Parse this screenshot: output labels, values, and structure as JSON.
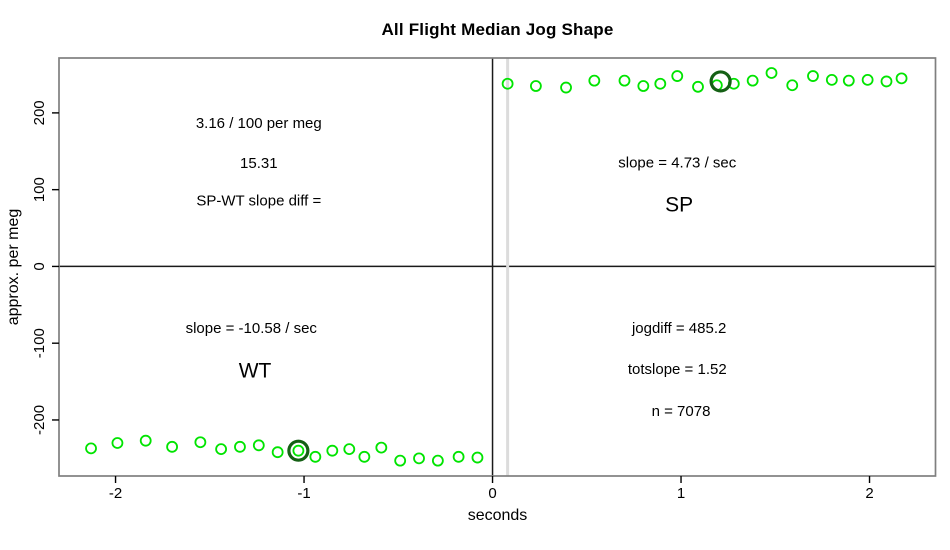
{
  "chart_data": {
    "type": "scatter",
    "title": "All Flight Median Jog Shape",
    "xlabel": "seconds",
    "ylabel": "approx. per meg",
    "x_range": [
      -2.3,
      2.35
    ],
    "y_range": [
      -273,
      271.5
    ],
    "x_ticks": [
      -2,
      -1,
      0,
      1,
      2
    ],
    "y_ticks": [
      -200,
      -100,
      0,
      100,
      200
    ],
    "grid": false,
    "legend": "none",
    "colors": {
      "point": "#00e400",
      "highlight_ring": "#156015",
      "plot_border": "#7f7f7f",
      "reference_line": "#1a1a1a",
      "marker_line": "#dcdcdc",
      "axis_text": "#000000",
      "background": "#ffffff"
    },
    "series": [
      {
        "name": "WT",
        "points": [
          [
            -2.13,
            -237
          ],
          [
            -1.99,
            -230
          ],
          [
            -1.84,
            -227
          ],
          [
            -1.7,
            -235
          ],
          [
            -1.55,
            -229
          ],
          [
            -1.44,
            -238
          ],
          [
            -1.34,
            -235
          ],
          [
            -1.24,
            -233
          ],
          [
            -1.14,
            -242
          ],
          [
            -1.03,
            -240
          ],
          [
            -0.94,
            -248
          ],
          [
            -0.85,
            -240
          ],
          [
            -0.76,
            -238
          ],
          [
            -0.68,
            -248
          ],
          [
            -0.59,
            -236
          ],
          [
            -0.49,
            -253
          ],
          [
            -0.39,
            -250
          ],
          [
            -0.29,
            -253
          ],
          [
            -0.18,
            -248
          ],
          [
            -0.08,
            -249
          ]
        ]
      },
      {
        "name": "SP",
        "points": [
          [
            0.08,
            238
          ],
          [
            0.23,
            235
          ],
          [
            0.39,
            233
          ],
          [
            0.54,
            242
          ],
          [
            0.7,
            242
          ],
          [
            0.8,
            235
          ],
          [
            0.89,
            238
          ],
          [
            0.98,
            248
          ],
          [
            1.09,
            234
          ],
          [
            1.19,
            236
          ],
          [
            1.28,
            238
          ],
          [
            1.38,
            242
          ],
          [
            1.48,
            252
          ],
          [
            1.59,
            236
          ],
          [
            1.7,
            248
          ],
          [
            1.8,
            243
          ],
          [
            1.89,
            242
          ],
          [
            1.99,
            243
          ],
          [
            2.09,
            241
          ],
          [
            2.17,
            245
          ]
        ]
      }
    ],
    "highlights": [
      {
        "series": "WT",
        "x": -1.03,
        "y": -240
      },
      {
        "series": "SP",
        "x": 1.21,
        "y": 241
      }
    ],
    "reference_lines": [
      {
        "id": "zero-hline",
        "axis": "h",
        "value": 0,
        "color": "#1a1a1a",
        "width": 1.5
      },
      {
        "id": "zero-vline",
        "axis": "v",
        "value": 0,
        "color": "#1a1a1a",
        "width": 1.5
      },
      {
        "id": "offset-vline",
        "axis": "v",
        "value": 0.08,
        "color": "#dcdcdc",
        "width": 3
      }
    ],
    "annotations": [
      {
        "id": "rate-per-meg",
        "text": "3.16 / 100 per meg",
        "x": -1.24,
        "y": 187,
        "size": 15
      },
      {
        "id": "slope-diff-value",
        "text": "15.31",
        "x": -1.24,
        "y": 135,
        "size": 15
      },
      {
        "id": "slope-diff-label",
        "text": "SP-WT slope diff =",
        "x": -1.24,
        "y": 86,
        "size": 15
      },
      {
        "id": "sp-slope",
        "text": "slope = 4.73 / sec",
        "x": 0.98,
        "y": 136,
        "size": 15
      },
      {
        "id": "sp-label",
        "text": "SP",
        "x": 0.99,
        "y": 81,
        "size": 21
      },
      {
        "id": "wt-slope",
        "text": "slope = -10.58 / sec",
        "x": -1.28,
        "y": -80,
        "size": 15
      },
      {
        "id": "wt-label",
        "text": "WT",
        "x": -1.26,
        "y": -135,
        "size": 21
      },
      {
        "id": "jogdiff",
        "text": "jogdiff = 485.2",
        "x": 0.99,
        "y": -80,
        "size": 15
      },
      {
        "id": "totslope",
        "text": "totslope = 1.52",
        "x": 0.98,
        "y": -133,
        "size": 15
      },
      {
        "id": "n-count",
        "text": "n = 7078",
        "x": 1.0,
        "y": -188,
        "size": 15
      }
    ],
    "point_style": {
      "radius": 5,
      "stroke_width": 1.8
    },
    "highlight_style": {
      "radius": 9.5,
      "stroke_width": 3.2
    }
  }
}
